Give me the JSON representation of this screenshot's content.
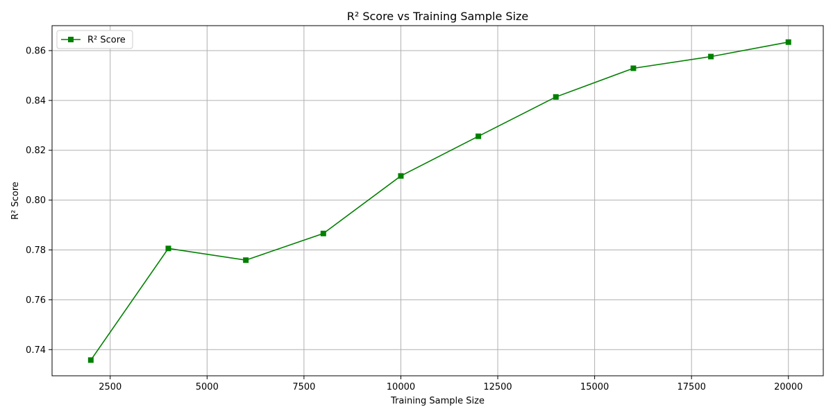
{
  "chart_data": {
    "type": "line",
    "title": "R² Score vs Training Sample Size",
    "xlabel": "Training Sample Size",
    "ylabel": "R² Score",
    "xlim": [
      1000,
      20900
    ],
    "ylim": [
      0.7295,
      0.87
    ],
    "xticks": [
      2500,
      5000,
      7500,
      10000,
      12500,
      15000,
      17500,
      20000
    ],
    "yticks": [
      0.74,
      0.76,
      0.78,
      0.8,
      0.82,
      0.84,
      0.86
    ],
    "xtick_labels": [
      "2500",
      "5000",
      "7500",
      "10000",
      "12500",
      "15000",
      "17500",
      "20000"
    ],
    "ytick_labels": [
      "0.74",
      "0.76",
      "0.78",
      "0.80",
      "0.82",
      "0.84",
      "0.86"
    ],
    "grid": true,
    "legend_position": "top-left",
    "series": [
      {
        "name": "R² Score",
        "color": "#008000",
        "marker": "square",
        "x": [
          2000,
          4000,
          6000,
          8000,
          10000,
          12000,
          14000,
          16000,
          18000,
          20000
        ],
        "y": [
          0.7358,
          0.7806,
          0.7759,
          0.7866,
          0.8097,
          0.8256,
          0.8414,
          0.8529,
          0.8576,
          0.8634
        ]
      }
    ]
  }
}
